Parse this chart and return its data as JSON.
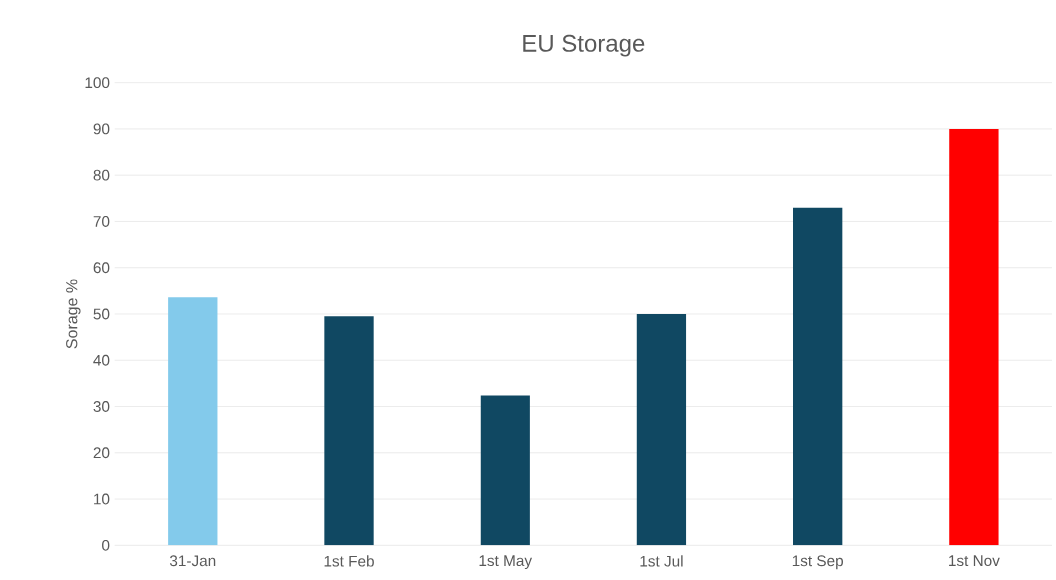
{
  "chart_data": {
    "type": "bar",
    "title": "EU Storage",
    "ylabel": "Sorage %",
    "categories": [
      "31-Jan",
      "1st Feb",
      "1st May",
      "1st Jul",
      "1st Sep",
      "1st Nov"
    ],
    "values": [
      53.6,
      49.5,
      32.4,
      50,
      73,
      90
    ],
    "colors": [
      "#83caeb",
      "#104862",
      "#104862",
      "#104862",
      "#104862",
      "#ff0000"
    ],
    "ylim": [
      0,
      100
    ],
    "yticks": [
      0,
      10,
      20,
      30,
      40,
      50,
      60,
      70,
      80,
      90,
      100
    ],
    "grid": "y"
  }
}
